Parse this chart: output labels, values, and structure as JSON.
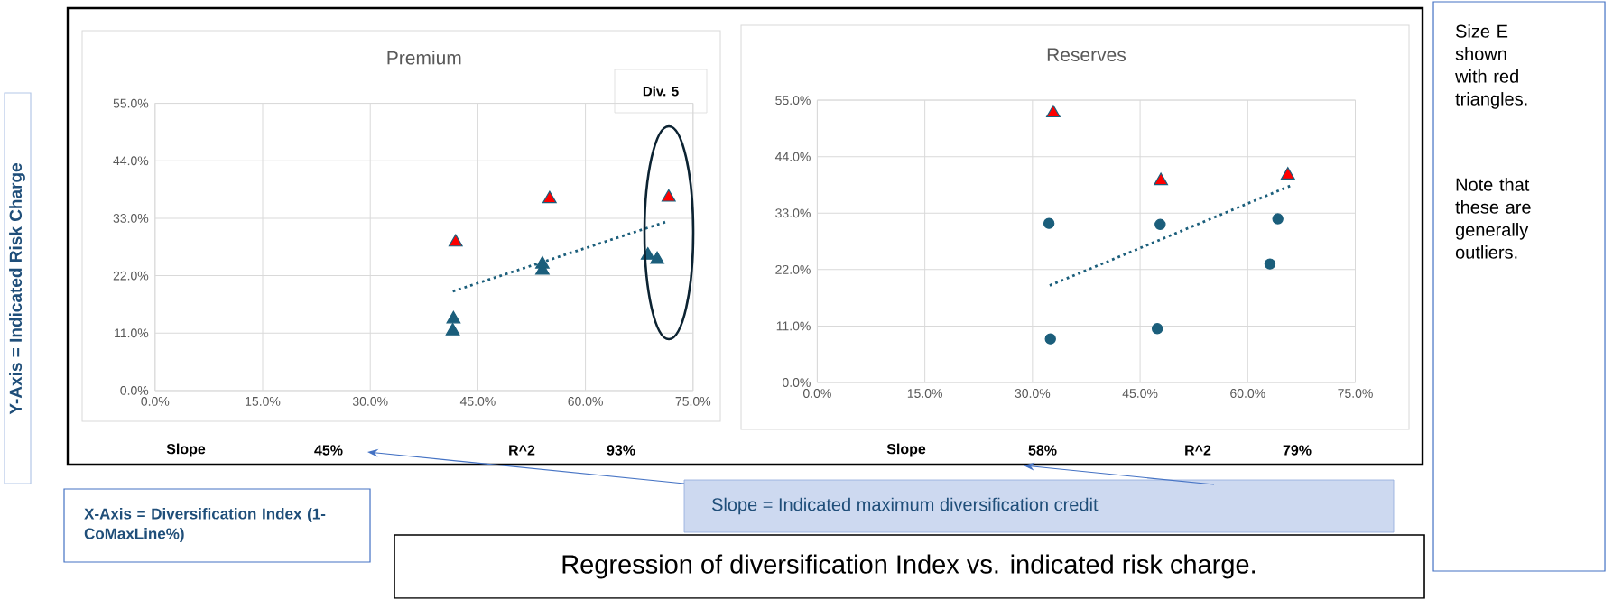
{
  "chart_data": [
    {
      "type": "scatter",
      "title": "Premium",
      "ylabel": "Y-Axis = Indicated Risk Charge",
      "xlabel": "X-Axis = Diversification Index (1-CoMaxLine%)",
      "grid": true,
      "marker": "triangle",
      "xlim": [
        0,
        75
      ],
      "ylim": [
        0,
        55
      ],
      "xticks": [
        {
          "value": 0,
          "label": "0.0%"
        },
        {
          "value": 15,
          "label": "15.0%"
        },
        {
          "value": 30,
          "label": "30.0%"
        },
        {
          "value": 45,
          "label": "45.0%"
        },
        {
          "value": 60,
          "label": "60.0%"
        },
        {
          "value": 75,
          "label": "75.0%"
        }
      ],
      "yticks": [
        {
          "value": 0,
          "label": "0.0%"
        },
        {
          "value": 11,
          "label": "11.0%"
        },
        {
          "value": 22,
          "label": "22.0%"
        },
        {
          "value": 33,
          "label": "33.0%"
        },
        {
          "value": 44,
          "label": "44.0%"
        },
        {
          "value": 55,
          "label": "55.0%"
        }
      ],
      "series": [
        {
          "color": "#1b5e7b",
          "x": [
            41.5,
            41.6,
            54.0,
            54.0,
            68.7,
            70.0
          ],
          "values": [
            11.4,
            13.7,
            23.0,
            24.2,
            25.9,
            25.1
          ]
        },
        {
          "color": "#ff0000",
          "x": [
            41.9,
            55.0,
            71.6
          ],
          "values": [
            28.4,
            36.7,
            37.0
          ]
        },
        {
          "type": "line",
          "marker": "none",
          "line_style": "dotted",
          "color": "#1b5e7b",
          "x": [
            41.5,
            71.2
          ],
          "values": [
            19.0,
            32.3
          ]
        }
      ],
      "annotations": [
        "Div. 5",
        "Slope",
        "45%",
        "R^2",
        "93%"
      ]
    },
    {
      "type": "scatter",
      "title": "Reserves",
      "grid": true,
      "xlim": [
        0,
        75
      ],
      "ylim": [
        0,
        55
      ],
      "xticks": [
        {
          "value": 0,
          "label": "0.0%"
        },
        {
          "value": 15,
          "label": "15.0%"
        },
        {
          "value": 30,
          "label": "30.0%"
        },
        {
          "value": 45,
          "label": "45.0%"
        },
        {
          "value": 60,
          "label": "60.0%"
        },
        {
          "value": 75,
          "label": "75.0%"
        }
      ],
      "yticks": [
        {
          "value": 0,
          "label": "0.0%"
        },
        {
          "value": 11,
          "label": "11.0%"
        },
        {
          "value": 22,
          "label": "22.0%"
        },
        {
          "value": 33,
          "label": "33.0%"
        },
        {
          "value": 44,
          "label": "44.0%"
        },
        {
          "value": 55,
          "label": "55.0%"
        }
      ],
      "series": [
        {
          "color": "#1b5e7b",
          "marker": "circle",
          "x": [
            32.3,
            32.5,
            47.8,
            47.4,
            64.2,
            63.1
          ],
          "values": [
            31.0,
            8.5,
            30.8,
            10.5,
            31.9,
            23.1
          ]
        },
        {
          "color": "#ff0000",
          "marker": "triangle",
          "x": [
            32.9,
            47.9,
            65.6
          ],
          "values": [
            52.5,
            39.3,
            40.4
          ]
        },
        {
          "type": "line",
          "marker": "none",
          "line_style": "dotted",
          "color": "#1b5e7b",
          "x": [
            32.4,
            65.9
          ],
          "values": [
            18.9,
            38.3
          ]
        }
      ],
      "annotations": [
        "Slope",
        "58%",
        "R^2",
        "79%",
        "Slope = Indicated maximum diversification credit",
        "Regression of diversification Index vs. indicated risk charge.",
        "Size E shown with red triangles.",
        "Note that these are generally outliers."
      ]
    }
  ]
}
